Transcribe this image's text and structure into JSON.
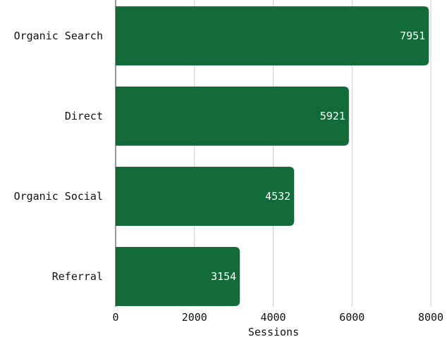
{
  "chart_data": {
    "type": "bar",
    "orientation": "horizontal",
    "categories": [
      "Organic Search",
      "Direct",
      "Organic Social",
      "Referral"
    ],
    "values": [
      7951,
      5921,
      4532,
      3154
    ],
    "data_labels": [
      "7951",
      "5921",
      "4532",
      "3154"
    ],
    "title": "",
    "xlabel": "Sessions",
    "ylabel": "",
    "xlim": [
      0,
      8000
    ],
    "x_ticks": [
      0,
      2000,
      4000,
      6000,
      8000
    ],
    "x_tick_labels": [
      "0",
      "2000",
      "4000",
      "6000",
      "8000"
    ],
    "grid": "vertical",
    "legend": "none",
    "colors": {
      "bar": "#136b3a",
      "grid": "#cccccc",
      "axis": "#333333",
      "data_label": "#ffffff",
      "text": "#111111"
    }
  }
}
